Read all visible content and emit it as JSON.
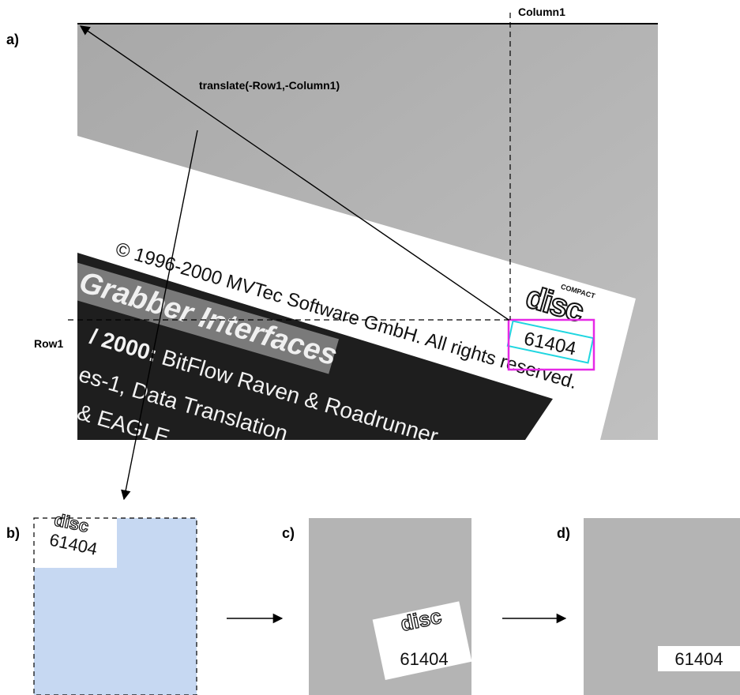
{
  "labels": {
    "a": "a)",
    "b": "b)",
    "c": "c)",
    "d": "d)"
  },
  "annotations": {
    "column1": "Column1",
    "row1": "Row1",
    "translate": "translate(-Row1,-Column1)"
  },
  "photo": {
    "copyright_line": "© 1996-2000 MVTec Software GmbH. All rights reserved.",
    "heading": "Grabber Interfaces",
    "year_line": "/ 2000:",
    "year_line_rest": " BitFlow Raven & Roadrunner",
    "line2": "es-1, Data Translation",
    "line3": "& EAGLE"
  },
  "logo": {
    "top_word": "COMPACT",
    "main_word": "disc"
  },
  "code_number": "61404",
  "colors": {
    "background_gray": "#b4b4b4",
    "paper_white": "#ffffff",
    "roi_magenta": "#e629e6",
    "rotated_rect_cyan": "#1fd6e0",
    "padding_blue": "#c6d8f2",
    "dark_band": "#222222",
    "highlight_box": "#7a7a7a"
  }
}
